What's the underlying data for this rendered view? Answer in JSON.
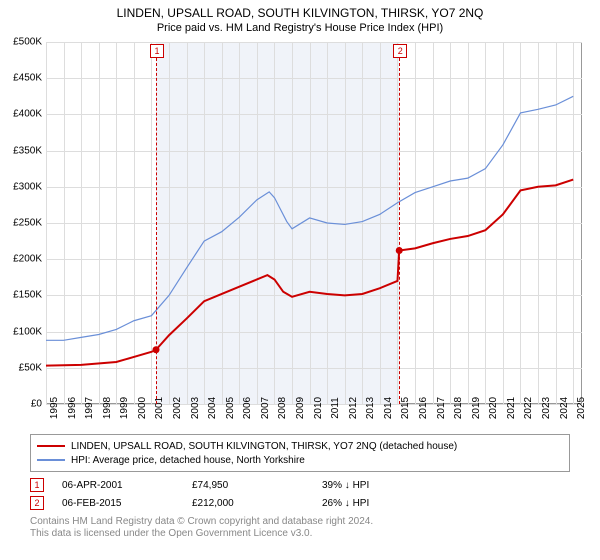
{
  "title": "LINDEN, UPSALL ROAD, SOUTH KILVINGTON, THIRSK, YO7 2NQ",
  "subtitle": "Price paid vs. HM Land Registry's House Price Index (HPI)",
  "chart": {
    "type": "line",
    "background_color": "#ffffff",
    "grid_color": "#dddddd",
    "border_color": "#999999",
    "shade_color": "#f0f3f9",
    "xlim": [
      1995,
      2025.5
    ],
    "ylim": [
      0,
      500000
    ],
    "ytick_step": 50000,
    "yticks": [
      {
        "v": 0,
        "label": "£0"
      },
      {
        "v": 50000,
        "label": "£50K"
      },
      {
        "v": 100000,
        "label": "£100K"
      },
      {
        "v": 150000,
        "label": "£150K"
      },
      {
        "v": 200000,
        "label": "£200K"
      },
      {
        "v": 250000,
        "label": "£250K"
      },
      {
        "v": 300000,
        "label": "£300K"
      },
      {
        "v": 350000,
        "label": "£350K"
      },
      {
        "v": 400000,
        "label": "£400K"
      },
      {
        "v": 450000,
        "label": "£450K"
      },
      {
        "v": 500000,
        "label": "£500K"
      }
    ],
    "xticks": [
      1995,
      1996,
      1997,
      1998,
      1999,
      2000,
      2001,
      2002,
      2003,
      2004,
      2005,
      2006,
      2007,
      2008,
      2009,
      2010,
      2011,
      2012,
      2013,
      2014,
      2015,
      2016,
      2017,
      2018,
      2019,
      2020,
      2021,
      2022,
      2023,
      2024,
      2025
    ],
    "shaded_ranges": [
      {
        "from": 2001.26,
        "to": 2015.1
      }
    ],
    "markers": [
      {
        "id": "1",
        "x": 2001.26
      },
      {
        "id": "2",
        "x": 2015.1
      }
    ],
    "series": [
      {
        "name": "property",
        "color": "#cc0000",
        "width": 2,
        "points": [
          {
            "x": 1995,
            "y": 53000
          },
          {
            "x": 1997,
            "y": 54000
          },
          {
            "x": 1999,
            "y": 58000
          },
          {
            "x": 2000,
            "y": 65000
          },
          {
            "x": 2001,
            "y": 72000
          },
          {
            "x": 2001.26,
            "y": 74950
          },
          {
            "x": 2002,
            "y": 95000
          },
          {
            "x": 2003,
            "y": 118000
          },
          {
            "x": 2004,
            "y": 142000
          },
          {
            "x": 2005,
            "y": 152000
          },
          {
            "x": 2006,
            "y": 162000
          },
          {
            "x": 2007,
            "y": 172000
          },
          {
            "x": 2007.6,
            "y": 178000
          },
          {
            "x": 2008,
            "y": 172000
          },
          {
            "x": 2008.5,
            "y": 155000
          },
          {
            "x": 2009,
            "y": 148000
          },
          {
            "x": 2010,
            "y": 155000
          },
          {
            "x": 2011,
            "y": 152000
          },
          {
            "x": 2012,
            "y": 150000
          },
          {
            "x": 2013,
            "y": 152000
          },
          {
            "x": 2014,
            "y": 160000
          },
          {
            "x": 2015,
            "y": 170000
          },
          {
            "x": 2015.1,
            "y": 212000
          },
          {
            "x": 2016,
            "y": 215000
          },
          {
            "x": 2017,
            "y": 222000
          },
          {
            "x": 2018,
            "y": 228000
          },
          {
            "x": 2019,
            "y": 232000
          },
          {
            "x": 2020,
            "y": 240000
          },
          {
            "x": 2021,
            "y": 262000
          },
          {
            "x": 2022,
            "y": 295000
          },
          {
            "x": 2023,
            "y": 300000
          },
          {
            "x": 2024,
            "y": 302000
          },
          {
            "x": 2025,
            "y": 310000
          }
        ],
        "sale_points": [
          {
            "x": 2001.26,
            "y": 74950
          },
          {
            "x": 2015.1,
            "y": 212000
          }
        ]
      },
      {
        "name": "hpi",
        "color": "#6a8fd8",
        "width": 1.2,
        "points": [
          {
            "x": 1995,
            "y": 88000
          },
          {
            "x": 1996,
            "y": 88000
          },
          {
            "x": 1997,
            "y": 92000
          },
          {
            "x": 1998,
            "y": 96000
          },
          {
            "x": 1999,
            "y": 103000
          },
          {
            "x": 2000,
            "y": 115000
          },
          {
            "x": 2001,
            "y": 122000
          },
          {
            "x": 2002,
            "y": 150000
          },
          {
            "x": 2003,
            "y": 188000
          },
          {
            "x": 2004,
            "y": 225000
          },
          {
            "x": 2005,
            "y": 238000
          },
          {
            "x": 2006,
            "y": 258000
          },
          {
            "x": 2007,
            "y": 282000
          },
          {
            "x": 2007.7,
            "y": 293000
          },
          {
            "x": 2008,
            "y": 285000
          },
          {
            "x": 2008.7,
            "y": 252000
          },
          {
            "x": 2009,
            "y": 242000
          },
          {
            "x": 2010,
            "y": 257000
          },
          {
            "x": 2011,
            "y": 250000
          },
          {
            "x": 2012,
            "y": 248000
          },
          {
            "x": 2013,
            "y": 252000
          },
          {
            "x": 2014,
            "y": 262000
          },
          {
            "x": 2015,
            "y": 278000
          },
          {
            "x": 2016,
            "y": 292000
          },
          {
            "x": 2017,
            "y": 300000
          },
          {
            "x": 2018,
            "y": 308000
          },
          {
            "x": 2019,
            "y": 312000
          },
          {
            "x": 2020,
            "y": 325000
          },
          {
            "x": 2021,
            "y": 358000
          },
          {
            "x": 2022,
            "y": 402000
          },
          {
            "x": 2023,
            "y": 407000
          },
          {
            "x": 2024,
            "y": 413000
          },
          {
            "x": 2025,
            "y": 425000
          }
        ]
      }
    ]
  },
  "legend": {
    "items": [
      {
        "color": "#cc0000",
        "width": 2,
        "label": "LINDEN, UPSALL ROAD, SOUTH KILVINGTON, THIRSK, YO7 2NQ (detached house)"
      },
      {
        "color": "#6a8fd8",
        "width": 1.2,
        "label": "HPI: Average price, detached house, North Yorkshire"
      }
    ]
  },
  "sales": [
    {
      "id": "1",
      "date": "06-APR-2001",
      "price": "£74,950",
      "delta": "39% ↓ HPI"
    },
    {
      "id": "2",
      "date": "06-FEB-2015",
      "price": "£212,000",
      "delta": "26% ↓ HPI"
    }
  ],
  "footer": {
    "line1": "Contains HM Land Registry data © Crown copyright and database right 2024.",
    "line2": "This data is licensed under the Open Government Licence v3.0."
  }
}
